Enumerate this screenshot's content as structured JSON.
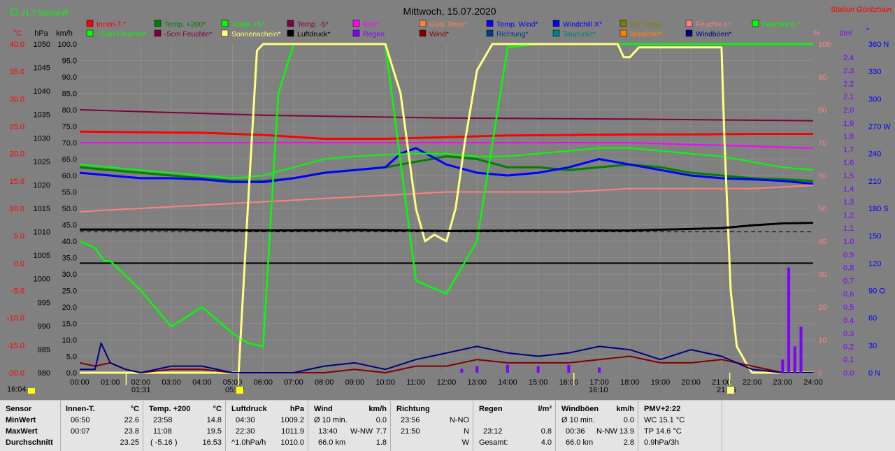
{
  "header": {
    "title": "Mittwoch, 15.07.2020",
    "station": "Station Göritzhain",
    "month_avg": "21.7 Monat-Ø"
  },
  "units": {
    "celsius": "°C",
    "hpa": "hPa",
    "kmh": "km/h",
    "percent": "%",
    "lm2": "l/m²",
    "deg": "°"
  },
  "axes": {
    "temp_ticks": [
      "40.0",
      "35.0",
      "30.0",
      "25.0",
      "20.0",
      "15.0",
      "10.0",
      "5.0",
      "0.0",
      "-5.0",
      "-10.0",
      "-15.0",
      "-20.0"
    ],
    "hpa_ticks": [
      "1050",
      "1045",
      "1040",
      "1035",
      "1030",
      "1025",
      "1020",
      "1015",
      "1010",
      "1005",
      "1000",
      "995",
      "990",
      "985",
      "980"
    ],
    "kmh_ticks": [
      "100.0",
      "95.0",
      "90.0",
      "85.0",
      "80.0",
      "75.0",
      "70.0",
      "65.0",
      "60.0",
      "55.0",
      "50.0",
      "45.0",
      "40.0",
      "35.0",
      "30.0",
      "25.0",
      "20.0",
      "15.0",
      "10.0",
      "5.0",
      "0.0"
    ],
    "pct_ticks": [
      "100",
      "90",
      "80",
      "70",
      "60",
      "50",
      "40",
      "30",
      "20",
      "10",
      "0"
    ],
    "rain_ticks": [
      "2.4",
      "2.3",
      "2.2",
      "2.1",
      "2.0",
      "1.9",
      "1.8",
      "1.7",
      "1.6",
      "1.5",
      "1.4",
      "1.3",
      "1.2",
      "1.1",
      "1.0",
      "0.9",
      "0.8",
      "0.7",
      "0.6",
      "0.5",
      "0.4",
      "0.3",
      "0.2",
      "0.1",
      "0.0"
    ],
    "dir_ticks": [
      "360 N",
      "330",
      "300",
      "270 W",
      "240",
      "210",
      "180 S",
      "150",
      "120",
      "90 O",
      "60",
      "30",
      "0   N"
    ],
    "time_ticks": [
      "00:00",
      "01:00",
      "02:00",
      "03:00",
      "04:00",
      "05:00",
      "06:00",
      "07:00",
      "08:00",
      "09:00",
      "10:00",
      "11:00",
      "12:00",
      "13:00",
      "14:00",
      "15:00",
      "16:00",
      "17:00",
      "18:00",
      "19:00",
      "20:00",
      "21:00",
      "22:00",
      "23:00",
      "24:00"
    ],
    "markers": [
      "16:04",
      "01:31",
      "05:12",
      "16:10",
      "21:16"
    ]
  },
  "legend": [
    {
      "label": "Innen-T.*",
      "color": "#ff0000"
    },
    {
      "label": "Temp. +200*",
      "color": "#008000"
    },
    {
      "label": "Temp. +5*",
      "color": "#00ff00"
    },
    {
      "label": "Temp. -5*",
      "color": "#800040"
    },
    {
      "label": "Bad*",
      "color": "#ff00ff"
    },
    {
      "label": "Gast Temp*",
      "color": "#ff8040"
    },
    {
      "label": "Temp. Wind*",
      "color": "#0000ff"
    },
    {
      "label": "Windchill X*",
      "color": "#0000ff"
    },
    {
      "label": "Diff Temp.",
      "color": "#808000"
    },
    {
      "label": "Feuchte I.*",
      "color": "#ff8080"
    },
    {
      "label": "Feuchte A.*",
      "color": "#00ff00"
    },
    {
      "label": "+5cm Feuchte*",
      "color": "#00ff00"
    },
    {
      "label": "-5cm Feuchte*",
      "color": "#800040"
    },
    {
      "label": "Sonnenschein*",
      "color": "#ffff80"
    },
    {
      "label": "Luftdruck*",
      "color": "#000000"
    },
    {
      "label": "Regen",
      "color": "#8000ff"
    },
    {
      "label": "Wind*",
      "color": "#800000"
    },
    {
      "label": "Richtung*",
      "color": "#004080"
    },
    {
      "label": "Taupunkt*",
      "color": "#008080"
    },
    {
      "label": "Windchill*",
      "color": "#ff8000"
    },
    {
      "label": "Windböen*",
      "color": "#000080"
    }
  ],
  "chart_data": {
    "type": "line",
    "title": "Mittwoch, 15.07.2020",
    "x_unit": "hours",
    "xlim": [
      0,
      24
    ],
    "series": [
      {
        "name": "Innen-T.*",
        "axis": "temp",
        "x": [
          0,
          2,
          4,
          6,
          8,
          10,
          12,
          14,
          16,
          18,
          20,
          22,
          24
        ],
        "values": [
          24.0,
          23.9,
          23.8,
          23.4,
          22.7,
          22.7,
          23.0,
          23.3,
          23.4,
          23.5,
          23.5,
          23.6,
          23.6
        ]
      },
      {
        "name": "Temp. +200*",
        "axis": "temp",
        "x": [
          0,
          1,
          2,
          3,
          4,
          5,
          6,
          7,
          8,
          9,
          10,
          11,
          12,
          13,
          14,
          15,
          16,
          17,
          18,
          19,
          20,
          21,
          22,
          23,
          24
        ],
        "values": [
          17.5,
          17.0,
          16.5,
          16.0,
          15.5,
          15.0,
          15.0,
          15.5,
          16.5,
          17.0,
          17.5,
          18.5,
          19.5,
          19.0,
          17.5,
          17.5,
          17.0,
          17.5,
          18.0,
          17.5,
          16.5,
          16.0,
          15.5,
          15.3,
          15.0
        ]
      },
      {
        "name": "Temp. Wind*",
        "axis": "temp",
        "x": [
          0,
          1,
          2,
          3,
          4,
          5,
          6,
          7,
          8,
          9,
          10,
          10.5,
          11,
          11.5,
          12,
          13,
          14,
          15,
          16,
          17,
          18,
          19,
          20,
          21,
          22,
          23,
          24
        ],
        "values": [
          16.5,
          16.0,
          15.5,
          15.5,
          15.3,
          14.8,
          14.8,
          15.5,
          16.5,
          17.0,
          17.5,
          20.0,
          21.0,
          19.5,
          18.0,
          16.5,
          16.0,
          16.5,
          17.5,
          19.0,
          18.0,
          17.0,
          16.0,
          15.5,
          15.3,
          15.0,
          14.5
        ]
      },
      {
        "name": "Temp. +5*",
        "axis": "temp",
        "x": [
          0,
          0.5,
          1,
          2,
          3,
          4,
          5,
          6,
          7,
          8,
          9,
          10,
          11,
          12,
          13,
          14,
          15,
          16,
          17,
          18,
          19,
          20,
          21,
          22,
          23,
          24
        ],
        "values": [
          18.0,
          17.8,
          17.5,
          17.0,
          16.5,
          16.0,
          15.5,
          16.0,
          17.5,
          19.0,
          19.5,
          19.8,
          20.0,
          20.0,
          19.5,
          19.5,
          20.0,
          20.5,
          21.0,
          21.0,
          20.5,
          20.0,
          19.5,
          18.5,
          17.5,
          17.0
        ]
      },
      {
        "name": "Temp. -5*",
        "axis": "temp",
        "x": [
          0,
          6,
          12,
          18,
          24
        ],
        "values": [
          28.0,
          27.0,
          26.5,
          26.3,
          26.0
        ]
      },
      {
        "name": "Bad*",
        "axis": "temp",
        "x": [
          0,
          6,
          12,
          18,
          24
        ],
        "values": [
          22.0,
          22.0,
          22.0,
          22.0,
          21.0
        ]
      },
      {
        "name": "Feuchte I.*",
        "axis": "pct",
        "x": [
          0,
          2,
          4,
          6,
          8,
          10,
          12,
          14,
          16,
          18,
          20,
          22,
          24
        ],
        "values": [
          49,
          50,
          51,
          52,
          53,
          54,
          55,
          55,
          55,
          56,
          56,
          56,
          57
        ]
      },
      {
        "name": "+5cm Feuchte*",
        "axis": "pct",
        "x": [
          0,
          0.5,
          0.8,
          1,
          2,
          3,
          4,
          5,
          5.5,
          6,
          6.5,
          7,
          8,
          9,
          10,
          11,
          12,
          13,
          14,
          15,
          16,
          17,
          18,
          19,
          20,
          21,
          22,
          23,
          24
        ],
        "values": [
          40,
          38,
          34,
          34,
          25,
          14,
          20,
          12,
          9,
          8,
          85,
          100,
          100,
          100,
          100,
          28,
          24,
          40,
          99,
          100,
          100,
          100,
          100,
          100,
          100,
          100,
          100,
          100,
          100
        ]
      },
      {
        "name": "Sonnenschein*",
        "axis": "pct",
        "x": [
          0,
          5.2,
          5.5,
          5.8,
          6,
          7,
          8,
          9,
          9.5,
          10,
          10.5,
          11,
          11.3,
          11.6,
          12,
          12.3,
          12.6,
          13,
          13.5,
          14,
          15,
          16,
          17,
          17.6,
          17.8,
          18,
          18.3,
          19,
          20,
          21,
          21.1,
          21.3,
          21.5,
          21.8,
          22,
          24
        ],
        "values": [
          0,
          0,
          50,
          98,
          100,
          100,
          100,
          100,
          100,
          100,
          85,
          50,
          40,
          42,
          40,
          50,
          70,
          92,
          100,
          100,
          100,
          100,
          100,
          100,
          96,
          96,
          99,
          99,
          99,
          99,
          70,
          25,
          8,
          3,
          0,
          0
        ]
      },
      {
        "name": "Luftdruck*",
        "axis": "hpa",
        "x": [
          0,
          3,
          6,
          9,
          12,
          15,
          18,
          21,
          22,
          23,
          24
        ],
        "values": [
          1010.5,
          1010.5,
          1010.3,
          1010.4,
          1010.2,
          1010.3,
          1010.3,
          1010.8,
          1011.4,
          1011.8,
          1011.9
        ]
      },
      {
        "name": "Wind*",
        "axis": "kmh",
        "x": [
          0,
          0.5,
          1,
          1.5,
          2,
          3,
          4,
          5,
          6,
          7,
          8,
          9,
          10,
          11,
          12,
          13,
          14,
          15,
          16,
          17,
          18,
          19,
          20,
          21,
          22,
          23,
          24
        ],
        "values": [
          3,
          2,
          3,
          1,
          0,
          1,
          1,
          0,
          0,
          0,
          0,
          1,
          0,
          2,
          2,
          4,
          3,
          3,
          3,
          4,
          5,
          3,
          3,
          4,
          2,
          0,
          0
        ]
      },
      {
        "name": "Windböen*",
        "axis": "kmh",
        "x": [
          0,
          0.5,
          0.7,
          1,
          1.5,
          2,
          3,
          4,
          5,
          6,
          7,
          8,
          9,
          10,
          11,
          12,
          13,
          14,
          15,
          16,
          17,
          18,
          19,
          20,
          21,
          22,
          23,
          24
        ],
        "values": [
          1,
          1,
          9,
          3,
          1,
          0,
          2,
          2,
          0,
          0,
          0,
          2,
          3,
          1,
          4,
          6,
          8,
          6,
          5,
          6,
          8,
          7,
          4,
          7,
          5,
          1,
          0,
          0
        ]
      },
      {
        "name": "Regen",
        "axis": "rain",
        "x": [
          10,
          12,
          12.5,
          13,
          14,
          15,
          16,
          17,
          21.5,
          22.5,
          23,
          23.2,
          23.4,
          23.6,
          24
        ],
        "values": [
          0,
          0,
          0.03,
          0.05,
          0.06,
          0.05,
          0.06,
          0.04,
          0,
          0,
          0.1,
          0.8,
          0.2,
          0.35,
          0
        ]
      }
    ],
    "ylims": {
      "temp": [
        -20,
        40
      ],
      "hpa": [
        980,
        1050
      ],
      "kmh": [
        0,
        100
      ],
      "pct": [
        0,
        100
      ],
      "rain": [
        0,
        2.5
      ],
      "dir": [
        0,
        360
      ]
    }
  },
  "table": {
    "row_labels": {
      "sensor": "Sensor",
      "min": "MinWert",
      "max": "MaxWert",
      "avg": "Durchschnitt"
    },
    "innen": {
      "head": "Innen-T.",
      "unit": "°C",
      "min_t": "06:50",
      "min_v": "22.6",
      "max_t": "00:07",
      "max_v": "23.8",
      "avg_v": "23.25"
    },
    "temp200": {
      "head": "Temp. +200",
      "unit": "°C",
      "min_t": "23:58",
      "min_v": "14.8",
      "max_t": "11:08",
      "max_v": "19.5",
      "avg_t": "( -5.16 )",
      "avg_v": "16.53"
    },
    "luft": {
      "head": "Luftdruck",
      "unit": "hPa",
      "min_t": "04:30",
      "min_v": "1009.2",
      "max_t": "22:30",
      "max_v": "1011.9",
      "avg_t": "^1.0hPa/h",
      "avg_v": "1010.0"
    },
    "wind": {
      "head": "Wind",
      "unit": "km/h",
      "min_t": "Ø 10 min.",
      "min_v": "0.0",
      "max_t": "13:40",
      "max_d": "W-NW",
      "max_v": "7.7",
      "avg_t": "66.0 km",
      "avg_v": "1.8"
    },
    "richtung": {
      "head": "Richtung",
      "min_t": "23:56",
      "min_v": "N-NO",
      "max_t": "21:50",
      "max_v": "N",
      "avg_v": "W"
    },
    "regen": {
      "head": "Regen",
      "unit": "l/m²",
      "max_t": "23:12",
      "max_v": "0.8",
      "avg_t": "Gesamt:",
      "avg_v": "4.0"
    },
    "boeen": {
      "head": "Windböen",
      "unit": "km/h",
      "min_t": "Ø 10 min.",
      "min_v": "0.0",
      "max_t": "00:36",
      "max_d": "N-NW",
      "max_v": "13.9",
      "avg_t": "66.0 km",
      "avg_v": "2.8"
    },
    "pmv": {
      "head": "PMV+2:22",
      "l1": "WC 15.1 °C",
      "l2": "TP 14.6 °C",
      "l3": "0.9hPa/3h"
    }
  }
}
